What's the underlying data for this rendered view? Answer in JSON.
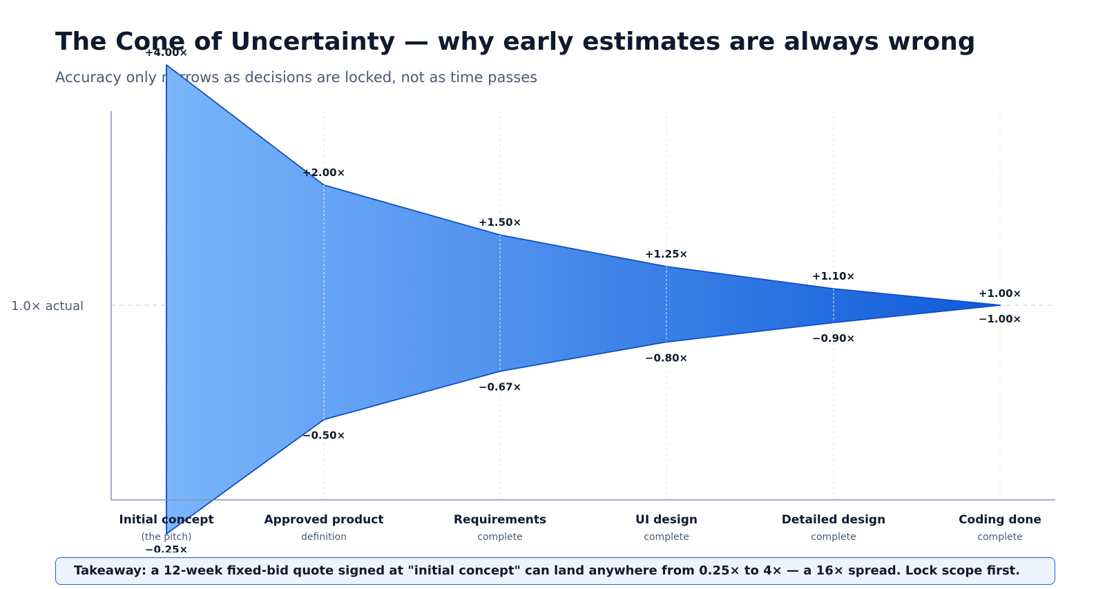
{
  "header": {
    "title": "The Cone of Uncertainty — why early estimates are always wrong",
    "subtitle": "Accuracy only narrows as decisions are locked, not as time passes"
  },
  "chart_data": {
    "type": "area",
    "title": "The Cone of Uncertainty — why early estimates are always wrong",
    "subtitle": "Accuracy only narrows as decisions are locked, not as time passes",
    "reference_line": {
      "value": 1.0,
      "label": "1.0× actual"
    },
    "scale": "log",
    "grid": true,
    "categories": [
      {
        "label": "Initial concept",
        "sublabel": "(the pitch)"
      },
      {
        "label": "Approved product",
        "sublabel": "definition"
      },
      {
        "label": "Requirements",
        "sublabel": "complete"
      },
      {
        "label": "UI design",
        "sublabel": "complete"
      },
      {
        "label": "Detailed design",
        "sublabel": "complete"
      },
      {
        "label": "Coding done",
        "sublabel": "complete"
      }
    ],
    "upper": [
      4.0,
      2.0,
      1.5,
      1.25,
      1.1,
      1.0
    ],
    "lower": [
      0.25,
      0.5,
      0.67,
      0.8,
      0.9,
      1.0
    ],
    "upper_labels": [
      "+4.00×",
      "+2.00×",
      "+1.50×",
      "+1.25×",
      "+1.10×",
      "+1.00×"
    ],
    "lower_labels": [
      "−0.25×",
      "−0.50×",
      "−0.67×",
      "−0.80×",
      "−0.90×",
      "−1.00×"
    ],
    "colors": {
      "fill_start": "#7bb6fb",
      "fill_end": "#0f5ad8",
      "outline": "#0b4fd0",
      "axis": "#8592ad",
      "grid": "#dde2ea",
      "label": "#0f1a2e",
      "muted": "#4a5a73"
    }
  },
  "takeaway": "Takeaway: a 12-week fixed-bid quote signed at \"initial concept\" can land anywhere from 0.25× to 4× — a 16× spread. Lock scope first."
}
